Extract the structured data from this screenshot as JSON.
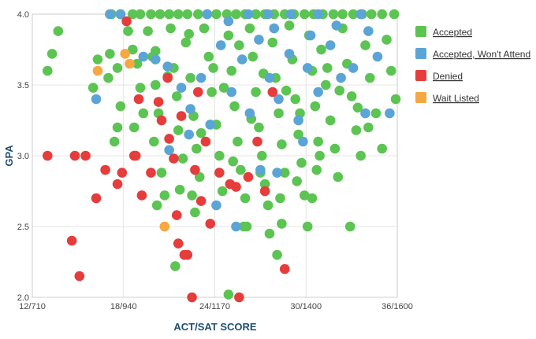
{
  "chart_data": {
    "type": "scatter",
    "xlabel": "ACT/SAT SCORE",
    "ylabel": "GPA",
    "xlim": [
      12,
      36
    ],
    "ylim": [
      2.0,
      4.0
    ],
    "x_ticks": [
      {
        "value": 12,
        "label": "12/710"
      },
      {
        "value": 18,
        "label": "18/940"
      },
      {
        "value": 24,
        "label": "24/1170"
      },
      {
        "value": 30,
        "label": "30/1400"
      },
      {
        "value": 36,
        "label": "36/1600"
      }
    ],
    "y_ticks": [
      {
        "value": 2.0,
        "label": "2.0"
      },
      {
        "value": 2.5,
        "label": "2.5"
      },
      {
        "value": 3.0,
        "label": "3.0"
      },
      {
        "value": 3.5,
        "label": "3.5"
      },
      {
        "value": 4.0,
        "label": "4.0"
      }
    ],
    "grid": true,
    "legend_position": "right",
    "series": [
      {
        "name": "Accepted",
        "color": "#5cc452",
        "points": [
          [
            17.2,
            4.0
          ],
          [
            17.8,
            4.0
          ],
          [
            18.6,
            4.0
          ],
          [
            19.1,
            4.0
          ],
          [
            19.8,
            4.0
          ],
          [
            20.4,
            4.0
          ],
          [
            21.0,
            4.0
          ],
          [
            21.6,
            4.0
          ],
          [
            22.2,
            4.0
          ],
          [
            22.9,
            4.0
          ],
          [
            23.5,
            4.0
          ],
          [
            24.1,
            4.0
          ],
          [
            24.8,
            4.0
          ],
          [
            25.4,
            4.0
          ],
          [
            26.0,
            4.0
          ],
          [
            26.7,
            4.0
          ],
          [
            27.3,
            4.0
          ],
          [
            27.9,
            4.0
          ],
          [
            28.6,
            4.0
          ],
          [
            29.2,
            4.0
          ],
          [
            29.9,
            4.0
          ],
          [
            30.5,
            4.0
          ],
          [
            31.1,
            4.0
          ],
          [
            31.8,
            4.0
          ],
          [
            32.4,
            4.0
          ],
          [
            33.1,
            4.0
          ],
          [
            33.7,
            4.0
          ],
          [
            34.3,
            4.0
          ],
          [
            35.0,
            4.0
          ],
          [
            35.8,
            4.0
          ],
          [
            13.7,
            3.88
          ],
          [
            13.3,
            3.72
          ],
          [
            13.0,
            3.6
          ],
          [
            16.3,
            3.68
          ],
          [
            16.0,
            3.48
          ],
          [
            17.1,
            3.72
          ],
          [
            17.0,
            3.55
          ],
          [
            17.6,
            3.62
          ],
          [
            17.8,
            3.35
          ],
          [
            17.6,
            3.2
          ],
          [
            17.4,
            3.1
          ],
          [
            18.3,
            3.88
          ],
          [
            18.6,
            3.75
          ],
          [
            18.9,
            3.65
          ],
          [
            19.1,
            3.48
          ],
          [
            19.3,
            3.3
          ],
          [
            18.7,
            3.2
          ],
          [
            19.6,
            3.88
          ],
          [
            19.9,
            3.7
          ],
          [
            20.1,
            3.5
          ],
          [
            20.3,
            3.3
          ],
          [
            20.0,
            3.1
          ],
          [
            20.5,
            2.88
          ],
          [
            20.7,
            2.72
          ],
          [
            20.2,
            2.65
          ],
          [
            21.1,
            3.9
          ],
          [
            21.3,
            3.62
          ],
          [
            21.5,
            3.42
          ],
          [
            21.6,
            3.18
          ],
          [
            21.9,
            2.98
          ],
          [
            21.7,
            2.76
          ],
          [
            22.1,
            3.8
          ],
          [
            22.4,
            3.55
          ],
          [
            22.6,
            3.28
          ],
          [
            22.8,
            3.05
          ],
          [
            23.0,
            2.85
          ],
          [
            22.7,
            2.6
          ],
          [
            23.3,
            3.9
          ],
          [
            23.6,
            3.7
          ],
          [
            23.8,
            3.45
          ],
          [
            24.1,
            3.22
          ],
          [
            24.3,
            3.0
          ],
          [
            24.5,
            2.75
          ],
          [
            24.9,
            3.85
          ],
          [
            25.1,
            3.6
          ],
          [
            25.3,
            3.35
          ],
          [
            25.5,
            3.1
          ],
          [
            25.7,
            2.9
          ],
          [
            26.0,
            2.7
          ],
          [
            25.9,
            2.5
          ],
          [
            26.3,
            3.9
          ],
          [
            26.5,
            3.7
          ],
          [
            26.7,
            3.45
          ],
          [
            26.9,
            3.2
          ],
          [
            27.1,
            3.0
          ],
          [
            27.3,
            2.8
          ],
          [
            27.5,
            2.65
          ],
          [
            27.6,
            2.45
          ],
          [
            27.8,
            3.8
          ],
          [
            28.0,
            3.55
          ],
          [
            28.2,
            3.3
          ],
          [
            28.4,
            3.08
          ],
          [
            28.6,
            2.88
          ],
          [
            28.3,
            2.7
          ],
          [
            28.9,
            3.92
          ],
          [
            29.1,
            3.68
          ],
          [
            29.3,
            3.4
          ],
          [
            29.5,
            3.15
          ],
          [
            29.7,
            2.95
          ],
          [
            29.9,
            2.72
          ],
          [
            30.2,
            3.85
          ],
          [
            30.4,
            3.6
          ],
          [
            30.6,
            3.35
          ],
          [
            30.8,
            3.1
          ],
          [
            30.7,
            2.9
          ],
          [
            30.4,
            2.7
          ],
          [
            30.1,
            2.5
          ],
          [
            31.0,
            3.75
          ],
          [
            31.3,
            3.5
          ],
          [
            31.6,
            3.25
          ],
          [
            31.9,
            3.05
          ],
          [
            32.1,
            2.85
          ],
          [
            32.4,
            3.9
          ],
          [
            32.7,
            3.65
          ],
          [
            33.0,
            3.42
          ],
          [
            33.3,
            3.18
          ],
          [
            33.6,
            3.0
          ],
          [
            33.9,
            3.78
          ],
          [
            34.2,
            3.55
          ],
          [
            34.6,
            3.3
          ],
          [
            35.0,
            3.05
          ],
          [
            35.3,
            3.82
          ],
          [
            35.6,
            3.6
          ],
          [
            35.9,
            3.4
          ],
          [
            32.9,
            2.5
          ],
          [
            26.1,
            2.5
          ],
          [
            24.9,
            2.02
          ],
          [
            28.1,
            2.3
          ],
          [
            21.4,
            2.22
          ],
          [
            28.4,
            2.52
          ],
          [
            20.1,
            3.74
          ],
          [
            20.9,
            3.56
          ],
          [
            22.3,
            3.86
          ],
          [
            23.1,
            3.16
          ],
          [
            23.9,
            3.62
          ],
          [
            24.6,
            3.48
          ],
          [
            25.6,
            3.78
          ],
          [
            26.4,
            3.26
          ],
          [
            27.2,
            3.58
          ],
          [
            28.7,
            3.46
          ],
          [
            29.6,
            3.3
          ],
          [
            31.4,
            3.62
          ],
          [
            32.2,
            3.46
          ],
          [
            33.4,
            3.34
          ],
          [
            34.1,
            3.2
          ],
          [
            30.9,
            3.0
          ],
          [
            29.4,
            2.82
          ],
          [
            27.0,
            2.88
          ],
          [
            25.2,
            2.96
          ],
          [
            22.5,
            2.72
          ]
        ]
      },
      {
        "name": "Accepted, Won't Attend",
        "color": "#5ba4d6",
        "points": [
          [
            17.1,
            4.0
          ],
          [
            17.8,
            4.0
          ],
          [
            23.5,
            4.0
          ],
          [
            26.2,
            4.0
          ],
          [
            27.5,
            4.0
          ],
          [
            29.0,
            4.0
          ],
          [
            30.8,
            4.0
          ],
          [
            33.6,
            4.0
          ],
          [
            16.2,
            3.4
          ],
          [
            19.3,
            3.7
          ],
          [
            20.1,
            3.68
          ],
          [
            20.9,
            3.63
          ],
          [
            21.8,
            3.48
          ],
          [
            22.4,
            3.33
          ],
          [
            23.1,
            3.55
          ],
          [
            23.7,
            3.22
          ],
          [
            24.4,
            3.78
          ],
          [
            25.1,
            3.45
          ],
          [
            25.8,
            3.68
          ],
          [
            26.3,
            3.3
          ],
          [
            26.9,
            3.82
          ],
          [
            27.6,
            3.55
          ],
          [
            28.2,
            3.4
          ],
          [
            28.9,
            3.72
          ],
          [
            29.5,
            3.25
          ],
          [
            30.1,
            3.62
          ],
          [
            30.8,
            3.45
          ],
          [
            31.6,
            3.78
          ],
          [
            32.3,
            3.55
          ],
          [
            33.1,
            3.62
          ],
          [
            33.9,
            3.3
          ],
          [
            34.7,
            3.7
          ],
          [
            35.5,
            3.3
          ],
          [
            22.3,
            3.15
          ],
          [
            24.1,
            2.65
          ],
          [
            25.4,
            2.5
          ],
          [
            27.0,
            2.9
          ],
          [
            28.1,
            2.88
          ],
          [
            29.8,
            3.1
          ],
          [
            21.0,
            3.04
          ],
          [
            24.9,
            3.95
          ],
          [
            27.9,
            3.9
          ],
          [
            30.3,
            3.85
          ],
          [
            32.0,
            3.92
          ],
          [
            34.1,
            3.88
          ]
        ]
      },
      {
        "name": "Denied",
        "color": "#e63c3c",
        "points": [
          [
            13.0,
            3.0
          ],
          [
            14.8,
            3.0
          ],
          [
            15.5,
            3.0
          ],
          [
            16.2,
            2.7
          ],
          [
            16.8,
            2.9
          ],
          [
            17.6,
            2.8
          ],
          [
            17.9,
            2.88
          ],
          [
            18.7,
            3.0
          ],
          [
            19.2,
            2.72
          ],
          [
            19.8,
            2.88
          ],
          [
            20.5,
            3.25
          ],
          [
            21.0,
            3.12
          ],
          [
            21.3,
            2.98
          ],
          [
            21.5,
            2.58
          ],
          [
            21.6,
            2.38
          ],
          [
            22.0,
            2.3
          ],
          [
            22.2,
            2.3
          ],
          [
            22.7,
            2.9
          ],
          [
            23.1,
            2.68
          ],
          [
            23.7,
            2.52
          ],
          [
            24.3,
            2.88
          ],
          [
            25.0,
            2.8
          ],
          [
            25.4,
            2.78
          ],
          [
            26.2,
            2.85
          ],
          [
            26.8,
            3.1
          ],
          [
            27.3,
            2.75
          ],
          [
            27.8,
            3.45
          ],
          [
            14.6,
            2.4
          ],
          [
            15.1,
            2.15
          ],
          [
            22.5,
            2.0
          ],
          [
            25.6,
            2.0
          ],
          [
            28.6,
            2.2
          ],
          [
            19.0,
            3.4
          ],
          [
            20.3,
            3.38
          ],
          [
            20.9,
            3.55
          ],
          [
            21.8,
            3.28
          ],
          [
            22.9,
            3.45
          ],
          [
            23.4,
            3.1
          ],
          [
            18.2,
            3.95
          ],
          [
            18.8,
            3.0
          ]
        ]
      },
      {
        "name": "Wait Listed",
        "color": "#f5a742",
        "points": [
          [
            16.3,
            3.6
          ],
          [
            18.1,
            3.72
          ],
          [
            18.4,
            3.65
          ],
          [
            20.7,
            2.5
          ]
        ]
      }
    ]
  }
}
